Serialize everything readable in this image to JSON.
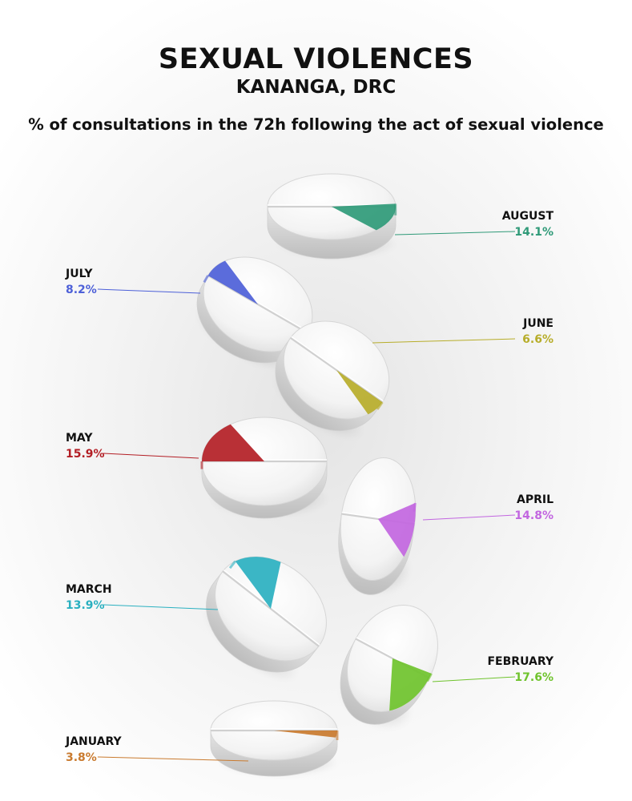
{
  "header": {
    "title": "SEXUAL VIOLENCES",
    "subtitle": "KANANGA, DRC",
    "description": "% of consultations in the 72h following the act of sexual violence"
  },
  "chart_data": {
    "type": "pie",
    "title": "SEXUAL VIOLENCES",
    "subtitle": "KANANGA, DRC",
    "description": "% of consultations in the 72h following the act of sexual violence",
    "unit": "%",
    "categories": [
      "JANUARY",
      "FEBRUARY",
      "MARCH",
      "APRIL",
      "MAY",
      "JUNE",
      "JULY",
      "AUGUST"
    ],
    "values": [
      3.8,
      17.6,
      13.9,
      14.8,
      15.9,
      6.6,
      8.2,
      14.1
    ],
    "labels": [
      "3.8%",
      "17.6%",
      "13.9%",
      "14.8%",
      "15.9%",
      "6.6%",
      "8.2%",
      "14.1%"
    ],
    "colors": [
      "#c97a2e",
      "#6fc32d",
      "#2ab0c0",
      "#c266e0",
      "#b31e25",
      "#b7ad2a",
      "#4d60d8",
      "#2f9a78"
    ]
  }
}
